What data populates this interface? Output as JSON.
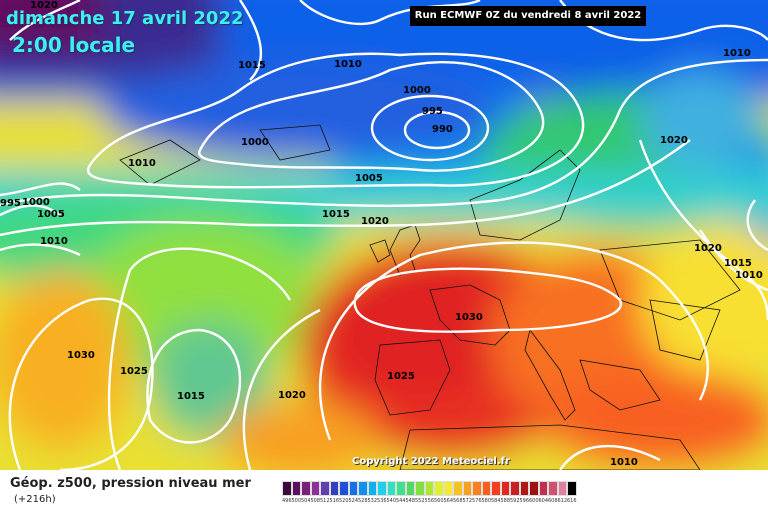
{
  "header": {
    "date": "dimanche 17 avril 2022",
    "time": "2:00 locale",
    "run": "Run ECMWF 0Z du vendredi 8 avril 2022"
  },
  "footer": {
    "title": "Géop. z500, pression niveau mer",
    "subtitle": "(+216h)",
    "copyright": "Copyright 2022 Meteociel.fr"
  },
  "isobar_labels": [
    "1020",
    "1015",
    "1010",
    "1000",
    "995",
    "990",
    "1000",
    "1005",
    "1010",
    "1015",
    "1020",
    "1010",
    "995",
    "1000",
    "1005",
    "1010",
    "1030",
    "1030",
    "1025",
    "1025",
    "1015",
    "1020",
    "1020",
    "1015",
    "1010",
    "1015",
    "1020",
    "1010"
  ],
  "legend": {
    "values": [
      "496",
      "500",
      "504",
      "508",
      "512",
      "516",
      "520",
      "524",
      "528",
      "532",
      "536",
      "540",
      "544",
      "548",
      "552",
      "556",
      "560",
      "564",
      "568",
      "572",
      "576",
      "580",
      "584",
      "588",
      "592",
      "596",
      "600",
      "604",
      "608",
      "612",
      "616"
    ],
    "colors": [
      "#3a0a3a",
      "#5a1060",
      "#78207a",
      "#8a3098",
      "#6040b0",
      "#3040c0",
      "#2050d8",
      "#1870e8",
      "#1090f0",
      "#10b0f0",
      "#20d0e8",
      "#30e0c0",
      "#40e090",
      "#50d860",
      "#80e040",
      "#b0e830",
      "#e0f030",
      "#f8e830",
      "#f8c020",
      "#f8a020",
      "#f88020",
      "#f86020",
      "#f04020",
      "#e02820",
      "#c82020",
      "#b01818",
      "#a01010",
      "#c03050",
      "#d05070",
      "#e080a0",
      "#000000"
    ]
  }
}
